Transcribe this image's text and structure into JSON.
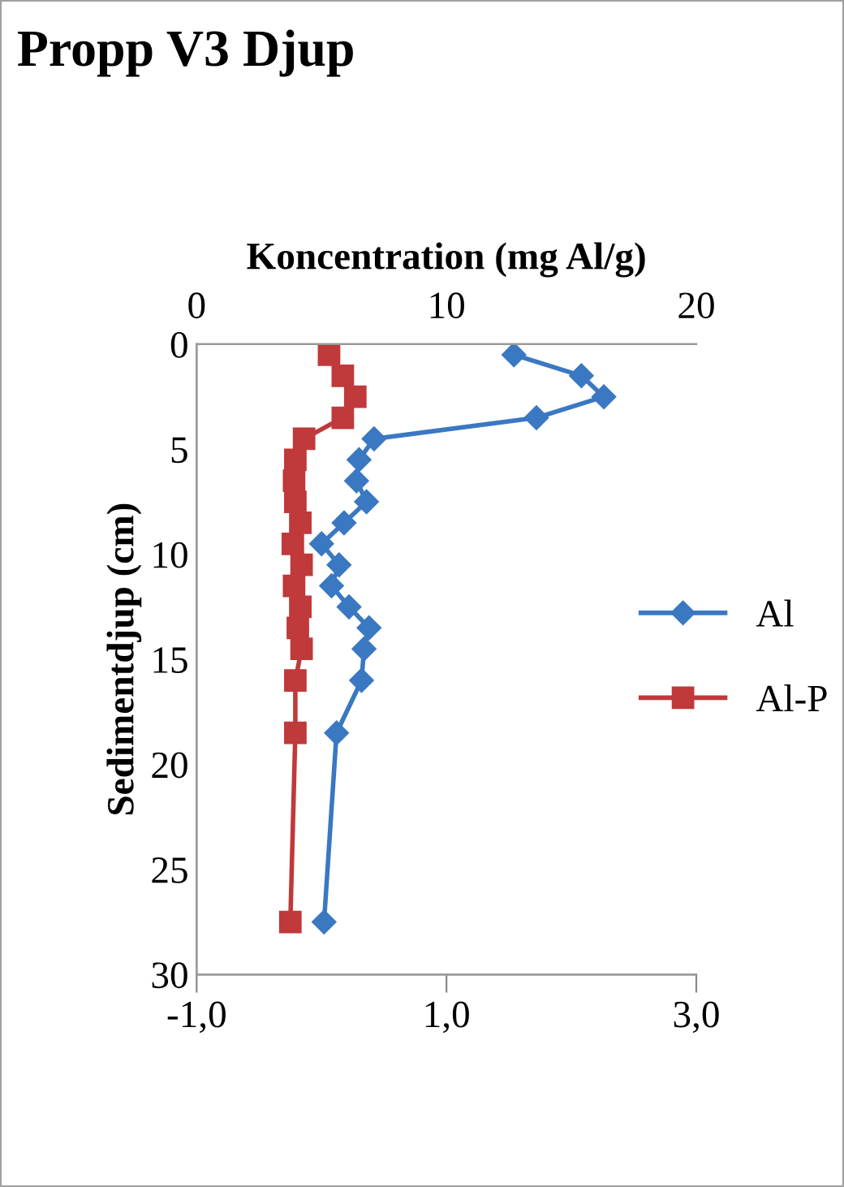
{
  "chart_data": {
    "type": "line",
    "title": "Propp V3 Djup",
    "x2label": "Koncentration (mg Al/g)",
    "ylabel": "Sedimentdjup (cm)",
    "ylim": [
      30,
      0
    ],
    "yticks": [
      0,
      5,
      10,
      15,
      20,
      25,
      30
    ],
    "xlim": [
      -1,
      3
    ],
    "xticks": [
      {
        "value": -1,
        "label": "-1,0"
      },
      {
        "value": 1,
        "label": "1,0"
      },
      {
        "value": 3,
        "label": "3,0"
      }
    ],
    "x2lim": [
      0,
      20
    ],
    "x2ticks": [
      0,
      10,
      20
    ],
    "grid": false,
    "legend": "right",
    "series": [
      {
        "name": "Al",
        "color": "#3a78c2",
        "marker": "diamond",
        "axis": "x2",
        "x": [
          12.7,
          15.4,
          16.3,
          13.6,
          7.1,
          6.5,
          6.4,
          6.8,
          5.9,
          5.0,
          5.7,
          5.4,
          6.1,
          6.9,
          6.7,
          6.6,
          5.6,
          5.1
        ],
        "values": [
          0.5,
          1.5,
          2.5,
          3.5,
          4.5,
          5.5,
          6.5,
          7.5,
          8.5,
          9.5,
          10.5,
          11.5,
          12.5,
          13.5,
          14.5,
          16,
          18.5,
          27.5
        ]
      },
      {
        "name": "Al-P",
        "color": "#c0393b",
        "marker": "square",
        "x": [
          0.06,
          0.17,
          0.27,
          0.17,
          -0.14,
          -0.21,
          -0.22,
          -0.21,
          -0.17,
          -0.23,
          -0.16,
          -0.22,
          -0.17,
          -0.19,
          -0.16,
          -0.21,
          -0.21,
          -0.25
        ],
        "values": [
          0.5,
          1.5,
          2.5,
          3.5,
          4.5,
          5.5,
          6.5,
          7.5,
          8.5,
          9.5,
          10.5,
          11.5,
          12.5,
          13.5,
          14.5,
          16,
          18.5,
          27.5
        ]
      }
    ]
  }
}
